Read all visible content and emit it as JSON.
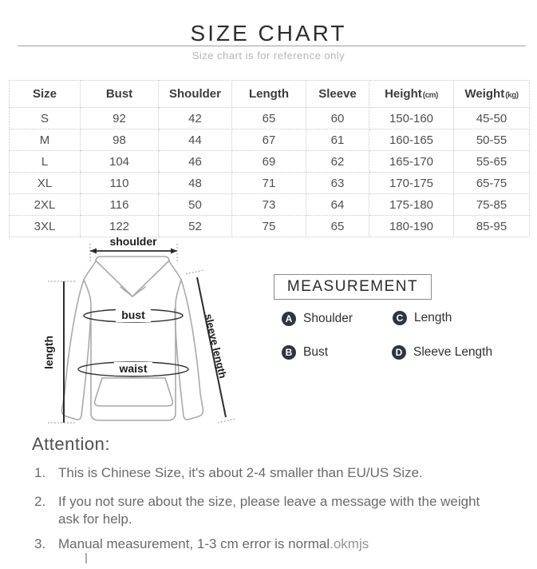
{
  "header": {
    "title": "SIZE CHART",
    "subtitle": "Size chart is for reference only"
  },
  "size_table": {
    "columns": [
      {
        "label": "Size",
        "unit": ""
      },
      {
        "label": "Bust",
        "unit": ""
      },
      {
        "label": "Shoulder",
        "unit": ""
      },
      {
        "label": "Length",
        "unit": ""
      },
      {
        "label": "Sleeve",
        "unit": ""
      },
      {
        "label": "Height",
        "unit": "(cm)"
      },
      {
        "label": "Weight",
        "unit": "(kg)"
      }
    ],
    "rows": [
      [
        "S",
        "92",
        "42",
        "65",
        "60",
        "150-160",
        "45-50"
      ],
      [
        "M",
        "98",
        "44",
        "67",
        "61",
        "160-165",
        "50-55"
      ],
      [
        "L",
        "104",
        "46",
        "69",
        "62",
        "165-170",
        "55-65"
      ],
      [
        "XL",
        "110",
        "48",
        "71",
        "63",
        "170-175",
        "65-75"
      ],
      [
        "2XL",
        "116",
        "50",
        "73",
        "64",
        "175-180",
        "75-85"
      ],
      [
        "3XL",
        "122",
        "52",
        "75",
        "65",
        "180-190",
        "85-95"
      ]
    ]
  },
  "diagram": {
    "labels": {
      "shoulder": "shoulder",
      "bust": "bust",
      "waist": "waist",
      "length": "length",
      "sleeve_length": "sleeve length"
    }
  },
  "measurement": {
    "title": "MEASUREMENT",
    "items": [
      {
        "key": "A",
        "label": "Shoulder"
      },
      {
        "key": "B",
        "label": "Bust"
      },
      {
        "key": "C",
        "label": "Length"
      },
      {
        "key": "D",
        "label": "Sleeve Length"
      }
    ]
  },
  "attention": {
    "heading": "Attention:",
    "items": [
      {
        "num": "1.",
        "text": "This is Chinese Size, it's about 2-4 smaller than EU/US Size.",
        "suffix": ""
      },
      {
        "num": "2.",
        "text": "If you not sure about the size, please leave a message with the weight ask for help.",
        "suffix": ""
      },
      {
        "num": "3.",
        "text": "Manual measurement, 1-3 cm error is normal",
        "suffix": ".okmjs"
      }
    ]
  },
  "colors": {
    "badge": "#2e3440",
    "measure_line": "#2b2b2b",
    "garment_outline": "#a9a9a9",
    "table_border": "#c9c9c9"
  }
}
